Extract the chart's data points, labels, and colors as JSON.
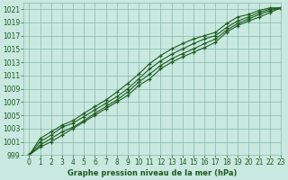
{
  "x": [
    0,
    1,
    2,
    3,
    4,
    5,
    6,
    7,
    8,
    9,
    10,
    11,
    12,
    13,
    14,
    15,
    16,
    17,
    18,
    19,
    20,
    21,
    22,
    23
  ],
  "series": [
    [
      999.0,
      1000.2,
      1001.0,
      1002.0,
      1003.0,
      1004.0,
      1005.0,
      1006.0,
      1007.0,
      1008.0,
      1009.5,
      1010.5,
      1012.0,
      1013.0,
      1013.8,
      1014.5,
      1015.2,
      1016.0,
      1017.5,
      1018.5,
      1019.2,
      1019.8,
      1020.5,
      1021.2
    ],
    [
      999.0,
      1000.5,
      1001.5,
      1002.5,
      1003.2,
      1004.2,
      1005.3,
      1006.3,
      1007.3,
      1008.5,
      1010.0,
      1011.2,
      1012.5,
      1013.5,
      1014.3,
      1015.0,
      1015.8,
      1016.5,
      1017.8,
      1018.8,
      1019.5,
      1020.2,
      1020.8,
      1021.2
    ],
    [
      999.0,
      1001.0,
      1002.0,
      1003.2,
      1003.8,
      1004.8,
      1005.8,
      1006.8,
      1007.8,
      1009.0,
      1010.5,
      1012.0,
      1013.2,
      1014.2,
      1015.0,
      1015.8,
      1016.5,
      1017.0,
      1018.2,
      1019.2,
      1019.8,
      1020.5,
      1021.0,
      1021.2
    ],
    [
      999.0,
      1001.5,
      1002.5,
      1003.5,
      1004.2,
      1005.3,
      1006.3,
      1007.3,
      1008.5,
      1009.8,
      1011.2,
      1012.8,
      1014.0,
      1015.0,
      1015.8,
      1016.5,
      1017.0,
      1017.5,
      1018.8,
      1019.8,
      1020.2,
      1020.8,
      1021.2,
      1021.2
    ]
  ],
  "bg_color": "#c8e8e0",
  "grid_color": "#8ab8ac",
  "line_color": "#1e5c1e",
  "marker": "+",
  "xlabel": "Graphe pression niveau de la mer (hPa)",
  "ylim": [
    999,
    1022
  ],
  "xlim": [
    -0.5,
    23
  ],
  "yticks": [
    999,
    1001,
    1003,
    1005,
    1007,
    1009,
    1011,
    1013,
    1015,
    1017,
    1019,
    1021
  ],
  "xticks": [
    0,
    1,
    2,
    3,
    4,
    5,
    6,
    7,
    8,
    9,
    10,
    11,
    12,
    13,
    14,
    15,
    16,
    17,
    18,
    19,
    20,
    21,
    22,
    23
  ],
  "tick_fontsize": 5.5,
  "xlabel_fontsize": 6.0,
  "linewidth": 0.8,
  "markersize": 3.5,
  "markeredgewidth": 0.9
}
